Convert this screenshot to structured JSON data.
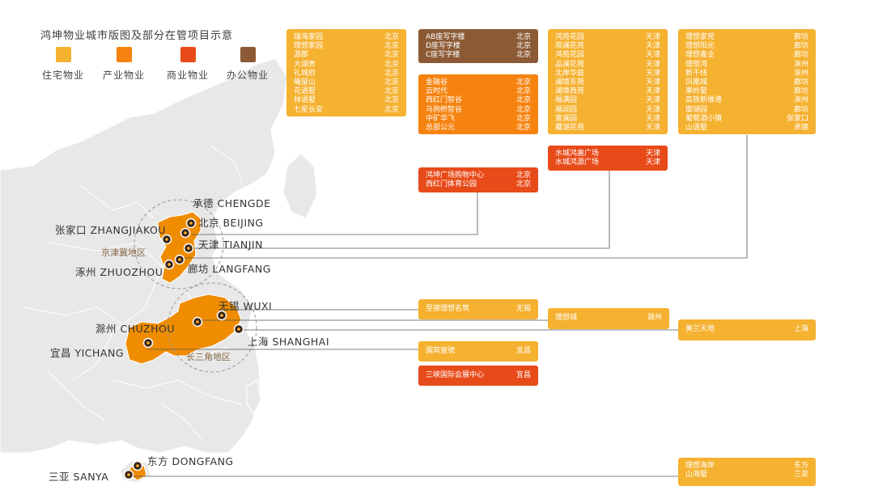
{
  "title": "鸿坤物业城市版图及部分在管项目示意",
  "legend": [
    {
      "label": "住宅物业",
      "color": "#f5b130"
    },
    {
      "label": "产业物业",
      "color": "#f6830f"
    },
    {
      "label": "商业物业",
      "color": "#e84b1a"
    },
    {
      "label": "办公物业",
      "color": "#8c5a34"
    }
  ],
  "regions": [
    {
      "label": "京津冀地区"
    },
    {
      "label": "长三角地区"
    }
  ],
  "cities": [
    {
      "label": "承德 CHENGDE"
    },
    {
      "label": "张家口 ZHANGJIAKOU"
    },
    {
      "label": "北京 BEIJING"
    },
    {
      "label": "天津 TIANJIN"
    },
    {
      "label": "涿州 ZHUOZHOU"
    },
    {
      "label": "廊坊 LANGFANG"
    },
    {
      "label": "无锡 WUXI"
    },
    {
      "label": "滁州 CHUZHOU"
    },
    {
      "label": "上海 SHANGHAI"
    },
    {
      "label": "宜昌 YICHANG"
    },
    {
      "label": "东方 DONGFANG"
    },
    {
      "label": "三亚 SANYA"
    }
  ],
  "project_boxes": [
    {
      "type": "res",
      "items": [
        {
          "name": "瑞海家园",
          "city": "北京"
        },
        {
          "name": "理想家园",
          "city": "北京"
        },
        {
          "name": "源郡",
          "city": "北京"
        },
        {
          "name": "大湖贵",
          "city": "北京"
        },
        {
          "name": "礼城府",
          "city": "北京"
        },
        {
          "name": "曦望山",
          "city": "北京"
        },
        {
          "name": "花语墅",
          "city": "北京"
        },
        {
          "name": "林语墅",
          "city": "北京"
        },
        {
          "name": "七星长安",
          "city": "北京"
        }
      ]
    },
    {
      "type": "off",
      "items": [
        {
          "name": "AB座写字楼",
          "city": "北京"
        },
        {
          "name": "D座写字楼",
          "city": "北京"
        },
        {
          "name": "C座写字楼",
          "city": "北京"
        }
      ]
    },
    {
      "type": "ind",
      "items": [
        {
          "name": "金融谷",
          "city": "北京"
        },
        {
          "name": "云时代",
          "city": "北京"
        },
        {
          "name": "西红门智谷",
          "city": "北京"
        },
        {
          "name": "马驹桥智谷",
          "city": "北京"
        },
        {
          "name": "中矿华飞",
          "city": "北京"
        },
        {
          "name": "总部公元",
          "city": "北京"
        }
      ]
    },
    {
      "type": "com",
      "items": [
        {
          "name": "鸿坤广场购物中心",
          "city": "北京"
        },
        {
          "name": "西红门体育公园",
          "city": "北京"
        }
      ]
    },
    {
      "type": "res",
      "items": [
        {
          "name": "鸿苑花园",
          "city": "天津"
        },
        {
          "name": "观澜花苑",
          "city": "天津"
        },
        {
          "name": "鸿苑花园",
          "city": "天津"
        },
        {
          "name": "品澜花苑",
          "city": "天津"
        },
        {
          "name": "北岸华庭",
          "city": "天津"
        },
        {
          "name": "澜境东苑",
          "city": "天津"
        },
        {
          "name": "澜境西苑",
          "city": "天津"
        },
        {
          "name": "福满园",
          "city": "天津"
        },
        {
          "name": "福润园",
          "city": "天津"
        },
        {
          "name": "富澜园",
          "city": "天津"
        },
        {
          "name": "藏湖花苑",
          "city": "天津"
        }
      ]
    },
    {
      "type": "com",
      "items": [
        {
          "name": "水城鸿嘉广场",
          "city": "天津"
        },
        {
          "name": "水城鸿源广场",
          "city": "天津"
        }
      ]
    },
    {
      "type": "res",
      "items": [
        {
          "name": "理想家苑",
          "city": "廊坊"
        },
        {
          "name": "理想阳光",
          "city": "廊坊"
        },
        {
          "name": "理想嘉业",
          "city": "廊坊"
        },
        {
          "name": "理想湾",
          "city": "涿州"
        },
        {
          "name": "新千线",
          "city": "涿州"
        },
        {
          "name": "凤凰城",
          "city": "廊坊"
        },
        {
          "name": "果岭墅",
          "city": "廊坊"
        },
        {
          "name": "高铁新维港",
          "city": "涿州"
        },
        {
          "name": "御湖园",
          "city": "廊坊"
        },
        {
          "name": "葡萄酒小镇",
          "city": "张家口"
        },
        {
          "name": "山语墅",
          "city": "承德"
        }
      ]
    },
    {
      "type": "res",
      "items": [
        {
          "name": "至德理想名筑",
          "city": "无锡"
        }
      ]
    },
    {
      "type": "res",
      "items": [
        {
          "name": "理想城",
          "city": "滁州"
        }
      ]
    },
    {
      "type": "res",
      "items": [
        {
          "name": "美兰天地",
          "city": "上海"
        }
      ]
    },
    {
      "type": "res",
      "items": [
        {
          "name": "国宾壹號",
          "city": "宜昌"
        }
      ]
    },
    {
      "type": "com",
      "items": [
        {
          "name": "三峡国际会展中心",
          "city": "宜昌"
        }
      ]
    },
    {
      "type": "res",
      "items": [
        {
          "name": "理想海岸",
          "city": "东方"
        },
        {
          "name": "山海墅",
          "city": "三亚"
        }
      ]
    }
  ]
}
